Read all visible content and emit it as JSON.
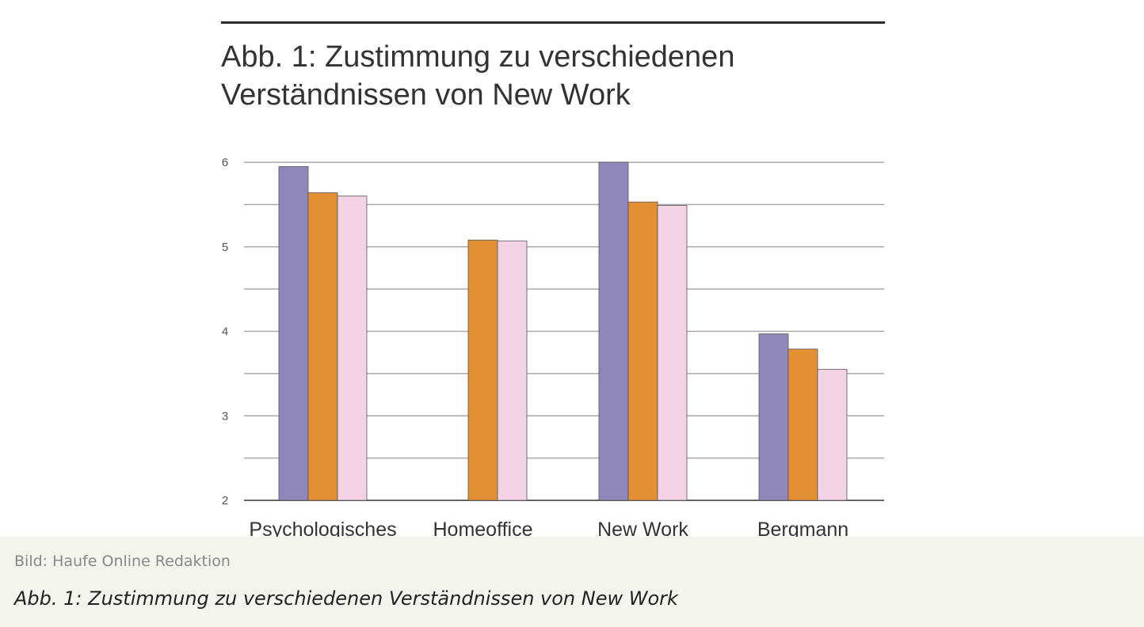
{
  "figure": {
    "title_lines": [
      "Abb. 1: Zustimmung zu verschiedenen",
      "Verständnissen von New Work"
    ]
  },
  "chart_data": {
    "type": "bar",
    "title": "Abb. 1: Zustimmung zu verschiedenen Verständnissen von New Work",
    "categories": [
      "Psychologisches",
      "Homeoffice",
      "New Work",
      "Bergmann"
    ],
    "series": [
      {
        "color": "#8f87b9",
        "values": [
          5.95,
          null,
          6.0,
          3.97
        ]
      },
      {
        "color": "#e39034",
        "values": [
          5.64,
          5.08,
          5.53,
          3.79
        ]
      },
      {
        "color": "#f3d3e3",
        "values": [
          5.6,
          5.07,
          5.49,
          3.55
        ]
      }
    ],
    "yticks": [
      2,
      3,
      4,
      5,
      6
    ],
    "ylim": [
      2,
      6
    ],
    "grid": true,
    "xlabel": "",
    "ylabel": ""
  },
  "caption": {
    "credit": "Bild: Haufe Online Redaktion",
    "text": "Abb. 1: Zustimmung zu verschiedenen Verständnissen von New Work"
  }
}
